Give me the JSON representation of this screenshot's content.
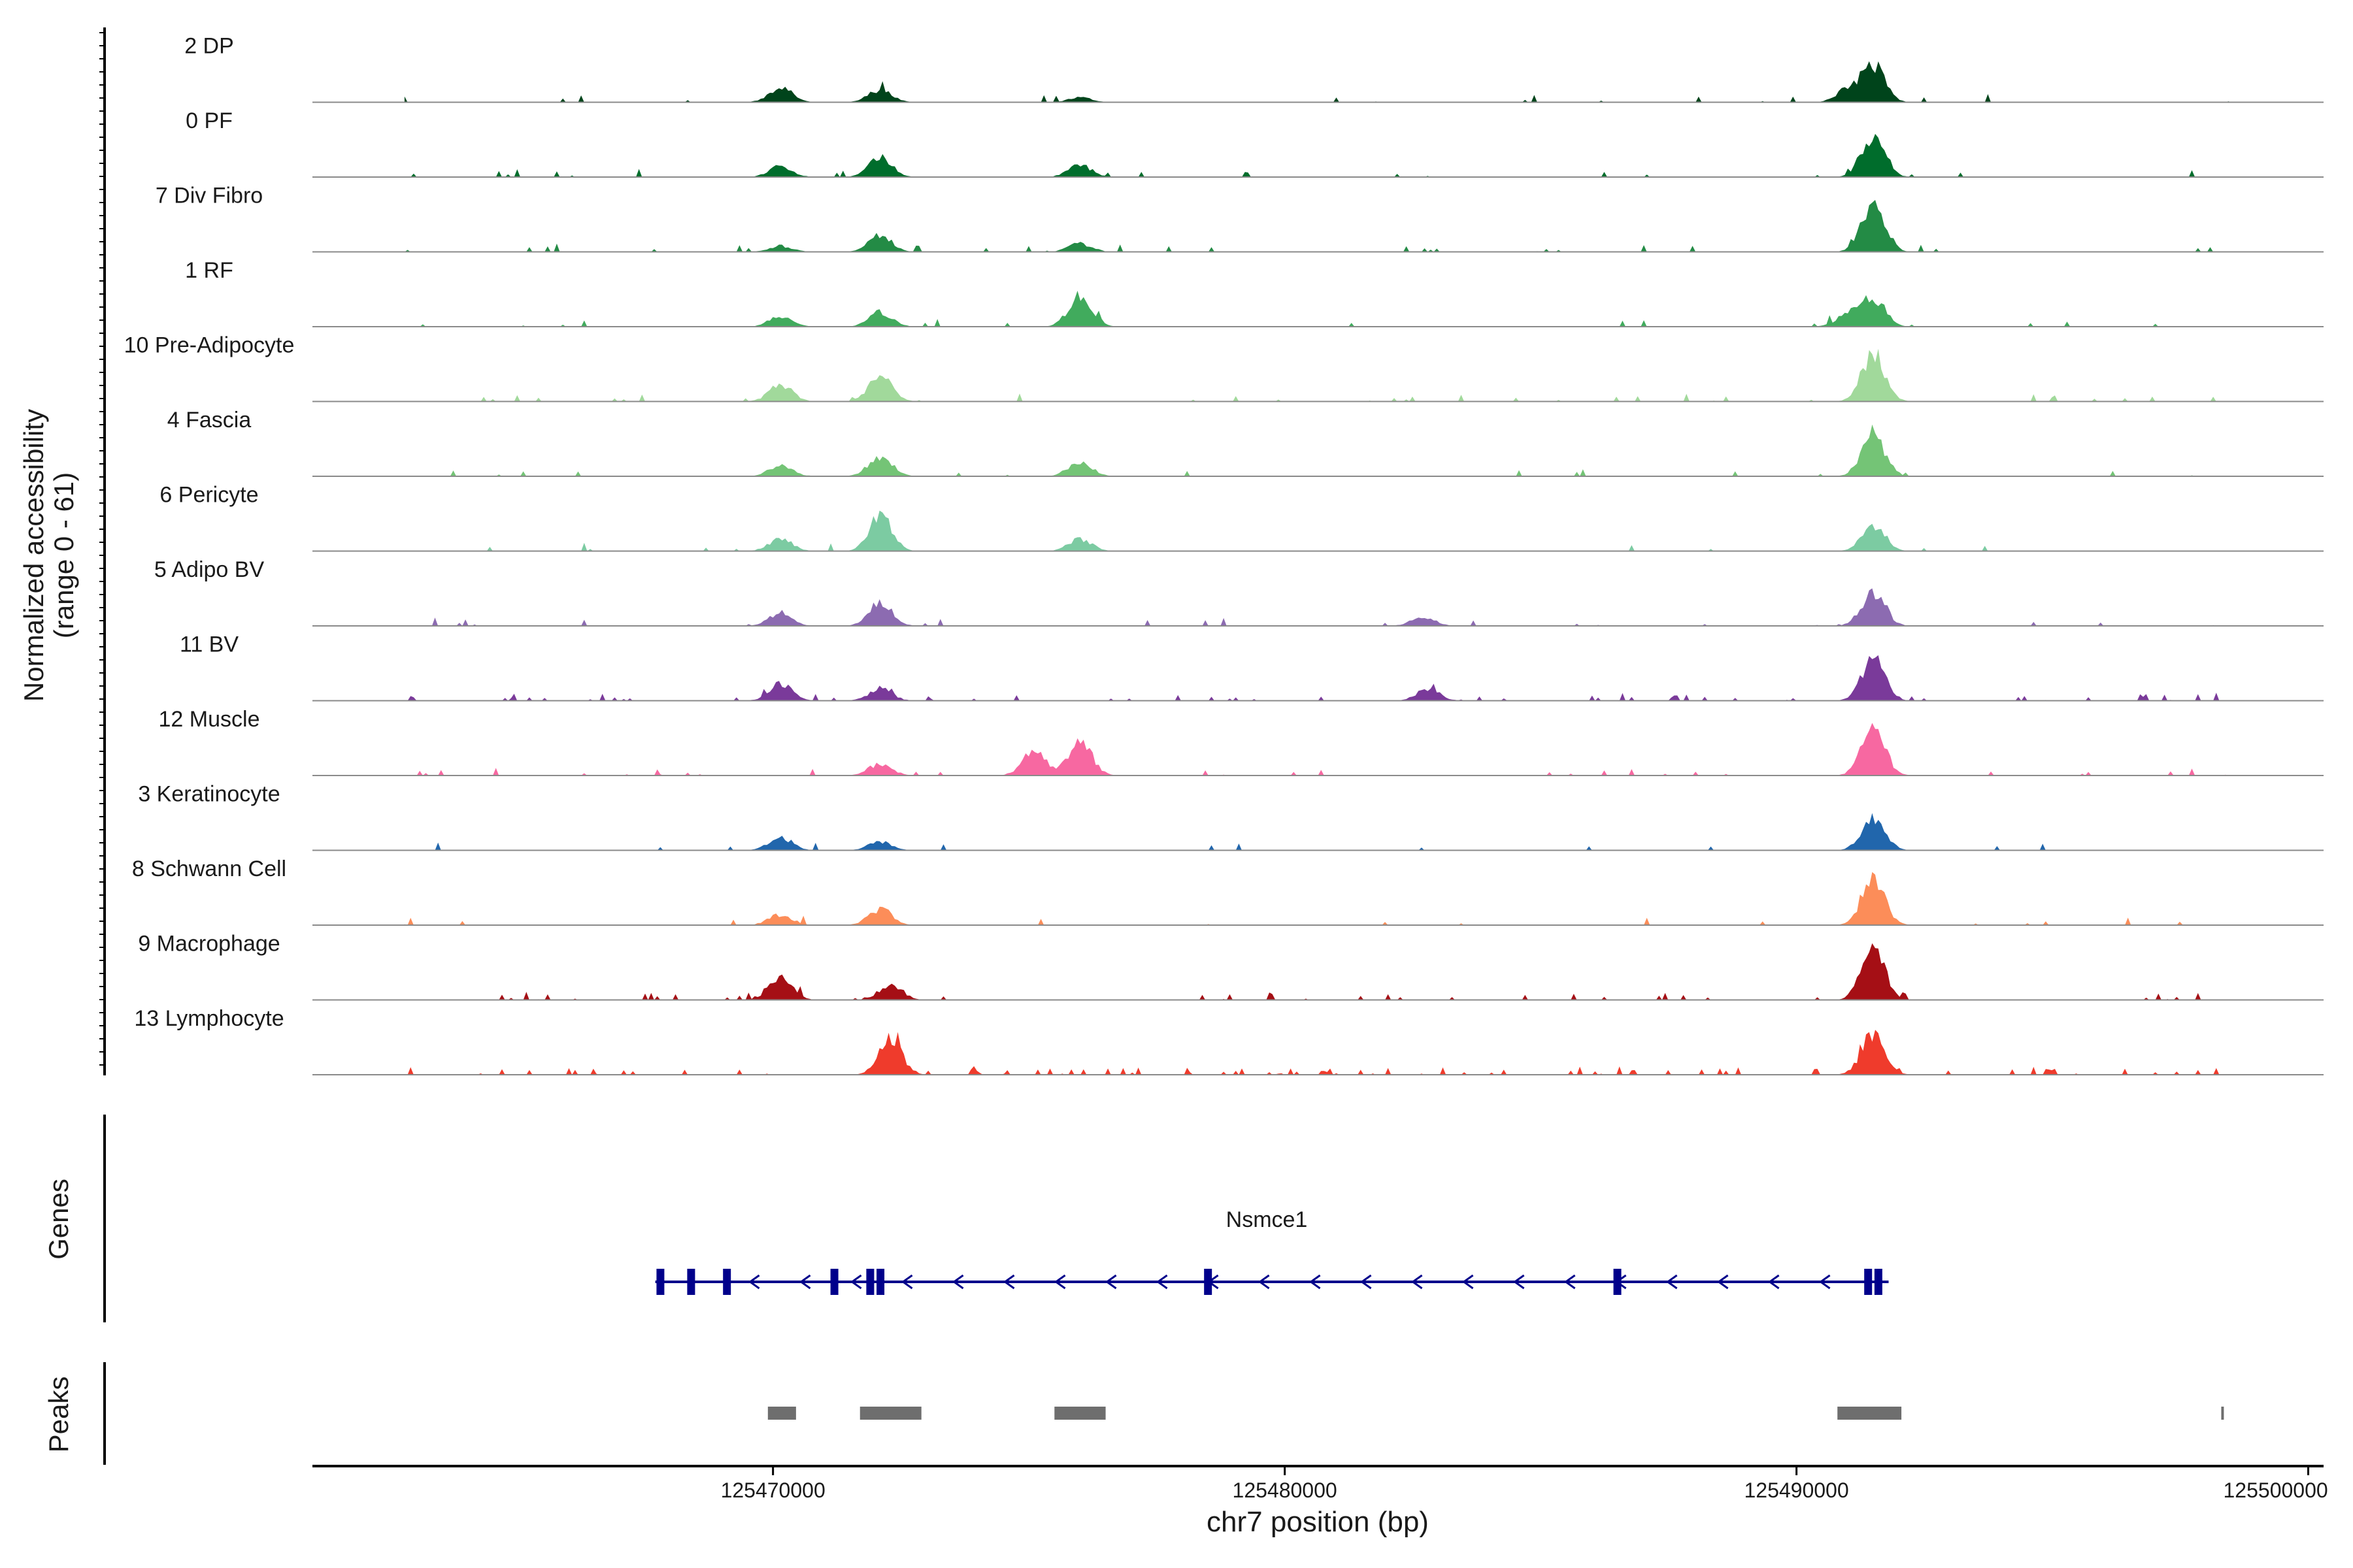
{
  "chart_data": {
    "type": "area",
    "title": "",
    "ylabel_line1": "Normalized accessibility",
    "ylabel_line2": "(range 0 - 61)",
    "yrange": [
      0,
      61
    ],
    "xlabel": "chr7 position (bp)",
    "xlim": [
      125461000,
      125500300
    ],
    "xticks": [
      125470000,
      125480000,
      125490000,
      125500000
    ],
    "xtick_labels": [
      "125470000",
      "125480000",
      "125490000",
      "125500000"
    ],
    "major_peaks_bp": [
      125470150,
      125472100,
      125476000,
      125491500
    ],
    "tracks": [
      {
        "name": "2 DP",
        "color": "#00441b",
        "peaks": [
          [
            125470150,
            0.25
          ],
          [
            125472100,
            0.22
          ],
          [
            125476000,
            0.08
          ],
          [
            125491000,
            0.22
          ],
          [
            125491500,
            0.62
          ]
        ],
        "noise": 0.03
      },
      {
        "name": "0 PF",
        "color": "#006d2c",
        "peaks": [
          [
            125470150,
            0.18
          ],
          [
            125472100,
            0.32
          ],
          [
            125476000,
            0.2
          ],
          [
            125491500,
            0.72
          ]
        ],
        "noise": 0.03
      },
      {
        "name": "7 Div Fibro",
        "color": "#238b45",
        "peaks": [
          [
            125470150,
            0.1
          ],
          [
            125472100,
            0.28
          ],
          [
            125476000,
            0.14
          ],
          [
            125491500,
            0.78
          ]
        ],
        "noise": 0.06
      },
      {
        "name": "1 RF",
        "color": "#41ab5d",
        "peaks": [
          [
            125470150,
            0.17
          ],
          [
            125472100,
            0.25
          ],
          [
            125476000,
            0.52
          ],
          [
            125491000,
            0.2
          ],
          [
            125491500,
            0.48
          ]
        ],
        "noise": 0.03
      },
      {
        "name": "10 Pre-Adipocyte",
        "color": "#a1d99b",
        "peaks": [
          [
            125470150,
            0.28
          ],
          [
            125472100,
            0.42
          ],
          [
            125491500,
            0.8
          ]
        ],
        "noise": 0.07
      },
      {
        "name": "4 Fascia",
        "color": "#74c476",
        "peaks": [
          [
            125470150,
            0.18
          ],
          [
            125472100,
            0.35
          ],
          [
            125476000,
            0.25
          ],
          [
            125491500,
            0.72
          ]
        ],
        "noise": 0.03
      },
      {
        "name": "6 Pericyte",
        "color": "#7ccba2",
        "peaks": [
          [
            125470150,
            0.22
          ],
          [
            125472100,
            0.58
          ],
          [
            125476000,
            0.2
          ],
          [
            125491500,
            0.45
          ]
        ],
        "noise": 0.03
      },
      {
        "name": "5 Adipo BV",
        "color": "#8c6bb1",
        "peaks": [
          [
            125470150,
            0.22
          ],
          [
            125472100,
            0.4
          ],
          [
            125482700,
            0.15
          ],
          [
            125491500,
            0.6
          ]
        ],
        "noise": 0.04
      },
      {
        "name": "11 BV",
        "color": "#7a3a9a",
        "peaks": [
          [
            125470150,
            0.28
          ],
          [
            125472100,
            0.2
          ],
          [
            125482800,
            0.2
          ],
          [
            125491500,
            0.75
          ]
        ],
        "noise": 0.12
      },
      {
        "name": "12 Muscle",
        "color": "#f768a1",
        "peaks": [
          [
            125475100,
            0.42
          ],
          [
            125476000,
            0.58
          ],
          [
            125472100,
            0.2
          ],
          [
            125491500,
            0.8
          ]
        ],
        "noise": 0.06
      },
      {
        "name": "3 Keratinocyte",
        "color": "#2166ac",
        "peaks": [
          [
            125470150,
            0.22
          ],
          [
            125472100,
            0.15
          ],
          [
            125491500,
            0.55
          ]
        ],
        "noise": 0.03
      },
      {
        "name": "8 Schwann Cell",
        "color": "#fc8d59",
        "peaks": [
          [
            125470150,
            0.18
          ],
          [
            125472100,
            0.28
          ],
          [
            125491500,
            0.75
          ]
        ],
        "noise": 0.04
      },
      {
        "name": "9 Macrophage",
        "color": "#a50f15",
        "peaks": [
          [
            125470150,
            0.35
          ],
          [
            125472300,
            0.25
          ],
          [
            125491500,
            0.9
          ]
        ],
        "noise": 0.1
      },
      {
        "name": "13 Lymphocyte",
        "color": "#ef3b2c",
        "peaks": [
          [
            125472300,
            0.58
          ],
          [
            125491500,
            0.68
          ]
        ],
        "noise": 0.18
      }
    ],
    "genes_label": "Genes",
    "gene": {
      "name": "Nsmce1",
      "start": 125467700,
      "end": 125491800,
      "strand": "-",
      "exons": [
        125467800,
        125468400,
        125469100,
        125471200,
        125471900,
        125472100,
        125478500,
        125486500,
        125491400,
        125491600
      ]
    },
    "peaks_label": "Peaks",
    "peak_regions": [
      [
        125469900,
        125470450
      ],
      [
        125471700,
        125472900
      ],
      [
        125475500,
        125476500
      ],
      [
        125490800,
        125492050
      ],
      [
        125498300,
        125498350
      ]
    ]
  }
}
